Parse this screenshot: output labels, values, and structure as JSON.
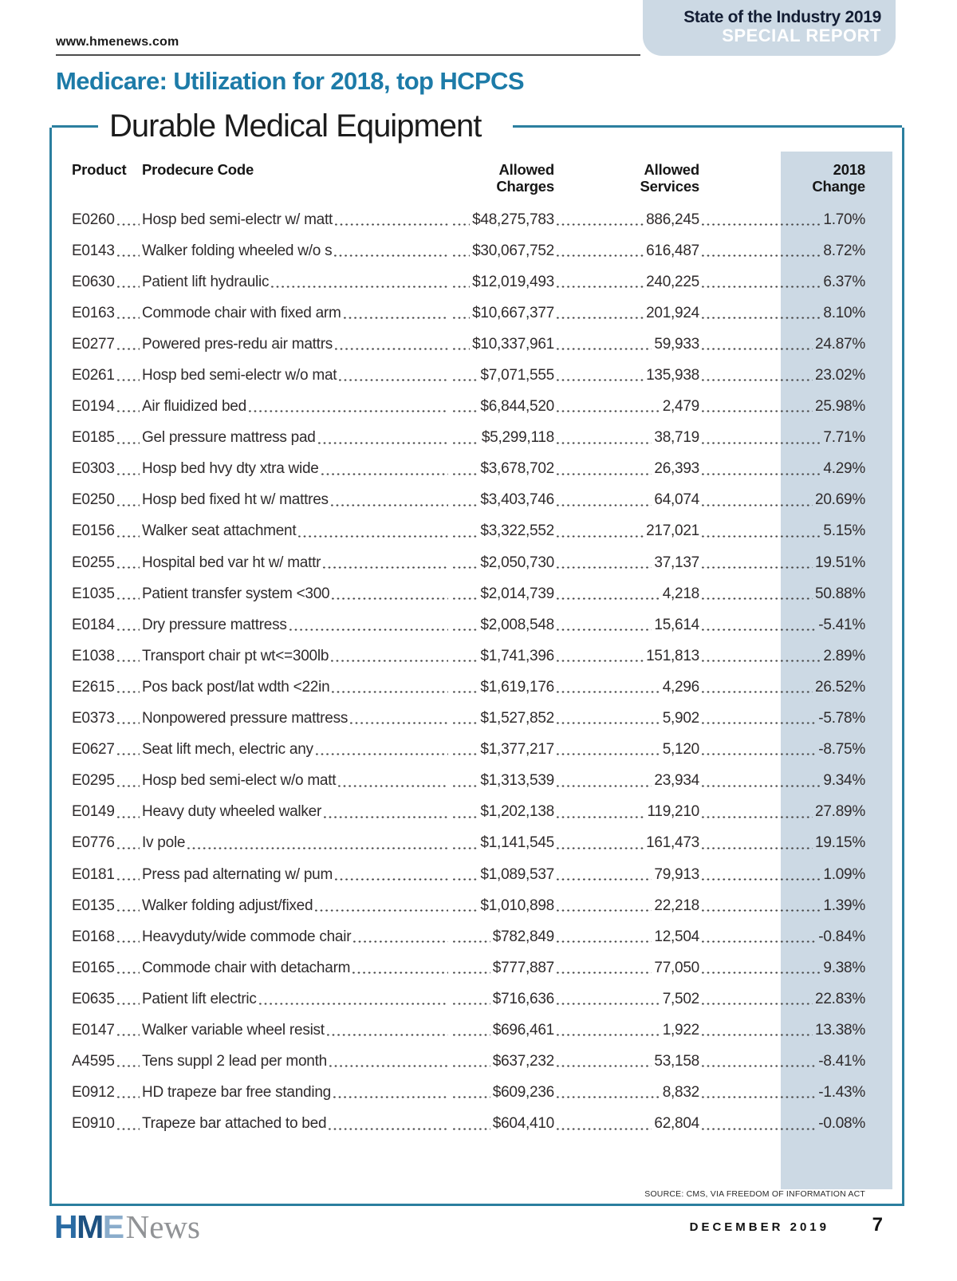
{
  "header": {
    "site_url": "www.hmenews.com",
    "badge_line1": "State of the Industry 2019",
    "badge_line2": "SPECIAL REPORT",
    "title": "Medicare: Utilization for 2018, top HCPCS",
    "section_title": "Durable Medical Equipment"
  },
  "table": {
    "columns": {
      "product": "Product",
      "code": "Prodecure Code",
      "charges_line1": "Allowed",
      "charges_line2": "Charges",
      "services_line1": "Allowed",
      "services_line2": "Services",
      "change_line1": "2018",
      "change_line2": "Change"
    },
    "rows": [
      {
        "code": "E0260",
        "product": "Hosp bed semi-electr w/ matt",
        "charges": "$48,275,783",
        "services": "886,245",
        "change": "1.70%"
      },
      {
        "code": "E0143",
        "product": "Walker folding wheeled w/o s",
        "charges": "$30,067,752",
        "services": "616,487",
        "change": "8.72%"
      },
      {
        "code": "E0630",
        "product": "Patient lift hydraulic",
        "charges": "$12,019,493",
        "services": "240,225",
        "change": "6.37%"
      },
      {
        "code": "E0163",
        "product": "Commode chair with fixed arm",
        "charges": "$10,667,377",
        "services": "201,924",
        "change": "8.10%"
      },
      {
        "code": "E0277",
        "product": "Powered pres-redu air mattrs",
        "charges": "$10,337,961",
        "services": "59,933",
        "change": "24.87%"
      },
      {
        "code": "E0261",
        "product": "Hosp bed semi-electr w/o mat",
        "charges": "$7,071,555",
        "services": "135,938",
        "change": "23.02%"
      },
      {
        "code": "E0194",
        "product": "Air fluidized bed",
        "charges": "$6,844,520",
        "services": "2,479",
        "change": "25.98%"
      },
      {
        "code": "E0185",
        "product": "Gel pressure mattress pad",
        "charges": "$5,299,118",
        "services": "38,719",
        "change": "7.71%"
      },
      {
        "code": "E0303",
        "product": "Hosp bed hvy dty xtra wide",
        "charges": "$3,678,702",
        "services": "26,393",
        "change": "4.29%"
      },
      {
        "code": "E0250",
        "product": "Hosp bed fixed ht w/ mattres",
        "charges": "$3,403,746",
        "services": "64,074",
        "change": "20.69%"
      },
      {
        "code": "E0156",
        "product": "Walker seat attachment",
        "charges": "$3,322,552",
        "services": "217,021",
        "change": "5.15%"
      },
      {
        "code": "E0255",
        "product": "Hospital bed var ht w/ mattr",
        "charges": "$2,050,730",
        "services": "37,137",
        "change": "19.51%"
      },
      {
        "code": "E1035",
        "product": "Patient transfer system <300",
        "charges": "$2,014,739",
        "services": "4,218",
        "change": "50.88%"
      },
      {
        "code": "E0184",
        "product": "Dry pressure mattress",
        "charges": "$2,008,548",
        "services": "15,614",
        "change": "-5.41%"
      },
      {
        "code": "E1038",
        "product": "Transport chair pt wt<=300lb",
        "charges": "$1,741,396",
        "services": "151,813",
        "change": "2.89%"
      },
      {
        "code": "E2615",
        "product": "Pos back post/lat wdth <22in",
        "charges": "$1,619,176",
        "services": "4,296",
        "change": "26.52%"
      },
      {
        "code": "E0373",
        "product": "Nonpowered pressure mattress",
        "charges": "$1,527,852",
        "services": "5,902",
        "change": "-5.78%"
      },
      {
        "code": "E0627",
        "product": "Seat lift mech, electric any",
        "charges": "$1,377,217",
        "services": "5,120",
        "change": "-8.75%"
      },
      {
        "code": "E0295",
        "product": "Hosp bed semi-elect w/o matt",
        "charges": "$1,313,539",
        "services": "23,934",
        "change": "9.34%"
      },
      {
        "code": "E0149",
        "product": "Heavy duty wheeled walker",
        "charges": "$1,202,138",
        "services": "119,210",
        "change": "27.89%"
      },
      {
        "code": "E0776",
        "product": "Iv pole",
        "charges": "$1,141,545",
        "services": "161,473",
        "change": "19.15%"
      },
      {
        "code": "E0181",
        "product": "Press pad alternating w/ pum",
        "charges": "$1,089,537",
        "services": "79,913",
        "change": "1.09%"
      },
      {
        "code": "E0135",
        "product": "Walker folding adjust/fixed",
        "charges": "$1,010,898",
        "services": "22,218",
        "change": "1.39%"
      },
      {
        "code": "E0168",
        "product": "Heavyduty/wide commode chair",
        "charges": "$782,849",
        "services": "12,504",
        "change": "-0.84%"
      },
      {
        "code": "E0165",
        "product": "Commode chair with detacharm",
        "charges": "$777,887",
        "services": "77,050",
        "change": "9.38%"
      },
      {
        "code": "E0635",
        "product": "Patient lift electric",
        "charges": "$716,636",
        "services": "7,502",
        "change": "22.83%"
      },
      {
        "code": "E0147",
        "product": "Walker variable wheel resist",
        "charges": "$696,461",
        "services": "1,922",
        "change": "13.38%"
      },
      {
        "code": "A4595",
        "product": "Tens suppl 2 lead per month",
        "charges": "$637,232",
        "services": "53,158",
        "change": "-8.41%"
      },
      {
        "code": "E0912",
        "product": "HD trapeze bar free standing",
        "charges": "$609,236",
        "services": "8,832",
        "change": "-1.43%"
      },
      {
        "code": "E0910",
        "product": "Trapeze bar attached to bed",
        "charges": "$604,410",
        "services": "62,804",
        "change": "-0.08%"
      }
    ],
    "source": "SOURCE: CMS, VIA FREEDOM OF INFORMATION ACT"
  },
  "footer": {
    "logo_h": "H",
    "logo_m": "M",
    "logo_e": "E",
    "logo_news": "News",
    "issue_date": "DECEMBER 2019",
    "page_number": "7"
  },
  "colors": {
    "accent_teal": "#2b7f9f",
    "title_blue": "#1d7ba8",
    "band_light_blue": "#ccd9e4",
    "badge_navy": "#131d33",
    "logo_h_blue": "#2a6ba3",
    "logo_m_blue": "#1d5181",
    "logo_e_blue": "#8aaccb"
  }
}
